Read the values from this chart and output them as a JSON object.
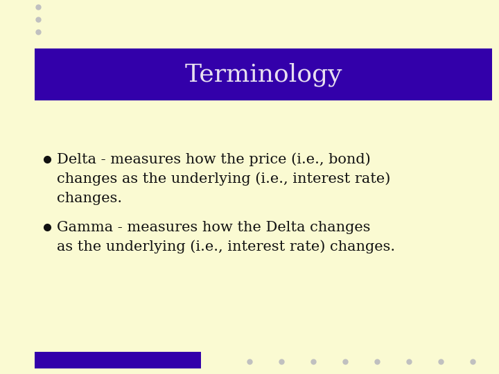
{
  "background_color": "#FAFAD2",
  "title": "Terminology",
  "title_bg_color": "#3300AA",
  "title_text_color": "#E8E0F0",
  "bullet1_line1": "Delta - measures how the price (i.e., bond)",
  "bullet1_line2": "changes as the underlying (i.e., interest rate)",
  "bullet1_line3": "changes.",
  "bullet2_line1": "Gamma - measures how the Delta changes",
  "bullet2_line2": "as the underlying (i.e., interest rate) changes.",
  "body_text_color": "#111111",
  "bullet_color": "#111111",
  "dot_color": "#C0C0C0",
  "footer_bar_color": "#3300AA",
  "footer_dots_count": 8
}
